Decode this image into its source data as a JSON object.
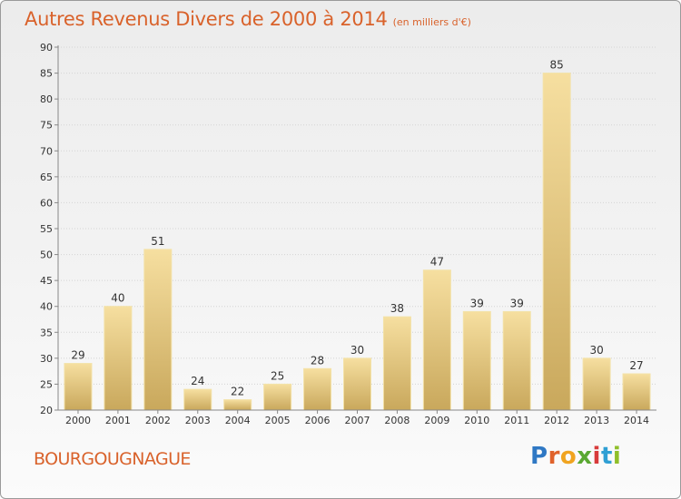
{
  "title": "Autres Revenus Divers de 2000 à 2014",
  "subtitle": "(en milliers d'€)",
  "town": "BOURGOUGNAGUE",
  "logo": {
    "text": "Proxiti",
    "colors": [
      "#2f78c4",
      "#e0622b",
      "#f0a420",
      "#5aa832",
      "#d83b3b",
      "#2f9fd4",
      "#8fbf2a"
    ]
  },
  "colors": {
    "title": "#d9622b",
    "bar_top": "#f6dfa0",
    "bar_bottom": "#c9a85c",
    "bar_border": "#f3e2a8"
  },
  "chart_data": {
    "type": "bar",
    "title": "Autres Revenus Divers de 2000 à 2014",
    "subtitle": "(en milliers d'€)",
    "categories": [
      "2000",
      "2001",
      "2002",
      "2003",
      "2004",
      "2005",
      "2006",
      "2007",
      "2008",
      "2009",
      "2010",
      "2011",
      "2012",
      "2013",
      "2014"
    ],
    "values": [
      29,
      40,
      51,
      24,
      22,
      25,
      28,
      30,
      38,
      47,
      39,
      39,
      85,
      30,
      27
    ],
    "ylim": [
      20,
      90
    ],
    "yticks": [
      20,
      25,
      30,
      35,
      40,
      45,
      50,
      55,
      60,
      65,
      70,
      75,
      80,
      85,
      90
    ],
    "grid": true,
    "data_labels": true
  }
}
